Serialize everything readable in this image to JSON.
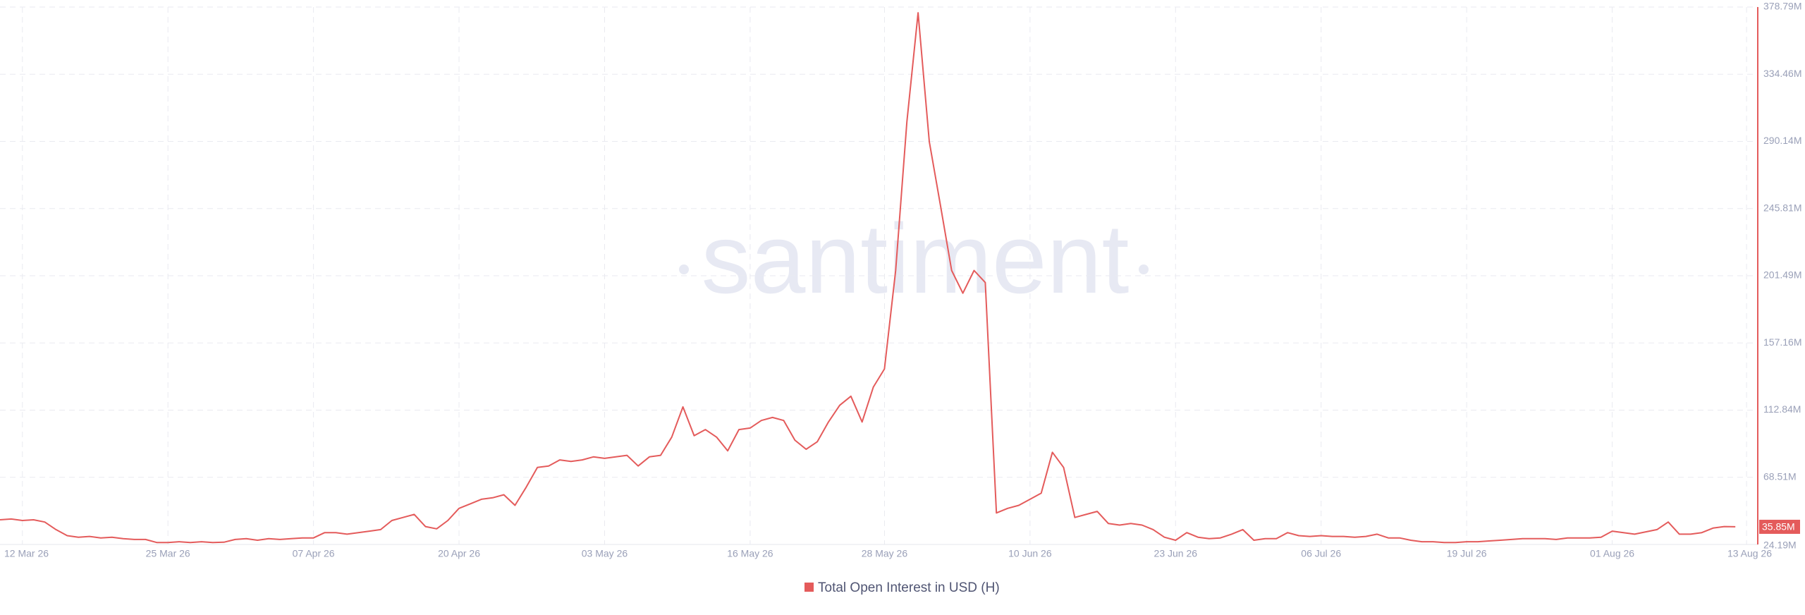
{
  "chart_data": {
    "type": "line",
    "watermark": "santiment",
    "x": [
      "2026-03-10",
      "2026-03-11",
      "2026-03-12",
      "2026-03-13",
      "2026-03-14",
      "2026-03-15",
      "2026-03-16",
      "2026-03-17",
      "2026-03-18",
      "2026-03-19",
      "2026-03-20",
      "2026-03-21",
      "2026-03-22",
      "2026-03-23",
      "2026-03-24",
      "2026-03-25",
      "2026-03-26",
      "2026-03-27",
      "2026-03-28",
      "2026-03-29",
      "2026-03-30",
      "2026-03-31",
      "2026-04-01",
      "2026-04-02",
      "2026-04-03",
      "2026-04-04",
      "2026-04-05",
      "2026-04-06",
      "2026-04-07",
      "2026-04-08",
      "2026-04-09",
      "2026-04-10",
      "2026-04-11",
      "2026-04-12",
      "2026-04-13",
      "2026-04-14",
      "2026-04-15",
      "2026-04-16",
      "2026-04-17",
      "2026-04-18",
      "2026-04-19",
      "2026-04-20",
      "2026-04-21",
      "2026-04-22",
      "2026-04-23",
      "2026-04-24",
      "2026-04-25",
      "2026-04-26",
      "2026-04-27",
      "2026-04-28",
      "2026-04-29",
      "2026-04-30",
      "2026-05-01",
      "2026-05-02",
      "2026-05-03",
      "2026-05-04",
      "2026-05-05",
      "2026-05-06",
      "2026-05-07",
      "2026-05-08",
      "2026-05-09",
      "2026-05-10",
      "2026-05-11",
      "2026-05-12",
      "2026-05-13",
      "2026-05-14",
      "2026-05-15",
      "2026-05-16",
      "2026-05-17",
      "2026-05-18",
      "2026-05-19",
      "2026-05-20",
      "2026-05-21",
      "2026-05-22",
      "2026-05-23",
      "2026-05-24",
      "2026-05-25",
      "2026-05-26",
      "2026-05-27",
      "2026-05-28",
      "2026-05-29",
      "2026-05-30",
      "2026-05-31",
      "2026-06-01",
      "2026-06-02",
      "2026-06-03",
      "2026-06-04",
      "2026-06-05",
      "2026-06-06",
      "2026-06-07",
      "2026-06-08",
      "2026-06-09",
      "2026-06-10",
      "2026-06-11",
      "2026-06-12",
      "2026-06-13",
      "2026-06-14",
      "2026-06-15",
      "2026-06-16",
      "2026-06-17",
      "2026-06-18",
      "2026-06-19",
      "2026-06-20",
      "2026-06-21",
      "2026-06-22",
      "2026-06-23",
      "2026-06-24",
      "2026-06-25",
      "2026-06-26",
      "2026-06-27",
      "2026-06-28",
      "2026-06-29",
      "2026-06-30",
      "2026-07-01",
      "2026-07-02",
      "2026-07-03",
      "2026-07-04",
      "2026-07-05",
      "2026-07-06",
      "2026-07-07",
      "2026-07-08",
      "2026-07-09",
      "2026-07-10",
      "2026-07-11",
      "2026-07-12",
      "2026-07-13",
      "2026-07-14",
      "2026-07-15",
      "2026-07-16",
      "2026-07-17",
      "2026-07-18",
      "2026-07-19",
      "2026-07-20",
      "2026-07-21",
      "2026-07-22",
      "2026-07-23",
      "2026-07-24",
      "2026-07-25",
      "2026-07-26",
      "2026-07-27",
      "2026-07-28",
      "2026-07-29",
      "2026-07-30",
      "2026-07-31",
      "2026-08-01",
      "2026-08-02",
      "2026-08-03",
      "2026-08-04",
      "2026-08-05",
      "2026-08-06",
      "2026-08-07",
      "2026-08-08",
      "2026-08-09",
      "2026-08-10",
      "2026-08-11",
      "2026-08-12"
    ],
    "series": [
      {
        "name": "Total Open Interest in USD (H)",
        "color": "#e45b5b",
        "values": [
          40.5,
          41,
          40,
          40.5,
          39,
          34,
          30,
          29,
          29.5,
          28.5,
          29,
          28,
          27.5,
          27.5,
          25.5,
          25.5,
          26,
          25.5,
          26,
          25.5,
          25.7,
          27.5,
          28,
          27,
          28,
          27.5,
          28,
          28.5,
          28.5,
          32,
          32,
          31,
          32,
          33,
          34,
          40,
          42,
          44,
          36,
          34.5,
          40,
          48,
          51,
          54,
          55,
          57,
          50,
          62,
          75,
          76,
          80,
          79,
          80,
          82,
          81,
          82,
          83,
          76,
          82,
          83,
          95,
          115,
          96,
          100,
          95,
          86,
          100,
          101,
          106,
          108,
          106,
          93,
          87,
          92,
          105,
          116,
          122,
          105,
          128,
          140,
          205,
          303,
          375,
          290,
          248,
          205,
          190,
          205,
          197,
          45,
          48,
          50,
          54,
          58,
          85,
          75,
          42,
          44,
          46,
          38,
          37,
          38,
          37,
          34,
          29,
          27,
          32,
          29,
          28,
          28.5,
          31,
          34,
          27,
          28,
          28,
          32,
          30,
          29.5,
          30,
          29.5,
          29.5,
          29,
          29.5,
          31,
          28.5,
          28.5,
          27,
          26,
          26,
          25.5,
          25.5,
          26,
          26,
          26.5,
          27,
          27.5,
          28,
          28,
          28,
          27.5,
          28.5,
          28.5,
          28.5,
          29,
          33,
          32,
          31,
          32.5,
          34,
          39,
          31,
          31,
          32,
          35,
          36,
          35.85
        ]
      }
    ],
    "current_label": {
      "value": 35.85,
      "label": "35.85M"
    },
    "xlim": [
      "2026-03-10",
      "2026-08-14"
    ],
    "xticks": [
      {
        "value": "2026-03-12",
        "label": "12 Mar 26"
      },
      {
        "value": "2026-03-25",
        "label": "25 Mar 26"
      },
      {
        "value": "2026-04-07",
        "label": "07 Apr 26"
      },
      {
        "value": "2026-04-20",
        "label": "20 Apr 26"
      },
      {
        "value": "2026-05-03",
        "label": "03 May 26"
      },
      {
        "value": "2026-05-16",
        "label": "16 May 26"
      },
      {
        "value": "2026-05-28",
        "label": "28 May 26"
      },
      {
        "value": "2026-06-10",
        "label": "10 Jun 26"
      },
      {
        "value": "2026-06-23",
        "label": "23 Jun 26"
      },
      {
        "value": "2026-07-06",
        "label": "06 Jul 26"
      },
      {
        "value": "2026-07-19",
        "label": "19 Jul 26"
      },
      {
        "value": "2026-08-01",
        "label": "01 Aug 26"
      },
      {
        "value": "2026-08-13",
        "label": "13 Aug 26"
      }
    ],
    "ylim": [
      24.19,
      378.79
    ],
    "yticks": [
      {
        "value": 24.19,
        "label": "24.19M"
      },
      {
        "value": 68.51,
        "label": "68.51M"
      },
      {
        "value": 112.84,
        "label": "112.84M"
      },
      {
        "value": 157.16,
        "label": "157.16M"
      },
      {
        "value": 201.49,
        "label": "201.49M"
      },
      {
        "value": 245.81,
        "label": "245.81M"
      },
      {
        "value": 290.14,
        "label": "290.14M"
      },
      {
        "value": 334.46,
        "label": "334.46M"
      },
      {
        "value": 378.79,
        "label": "378.79M"
      }
    ],
    "grid": true
  }
}
